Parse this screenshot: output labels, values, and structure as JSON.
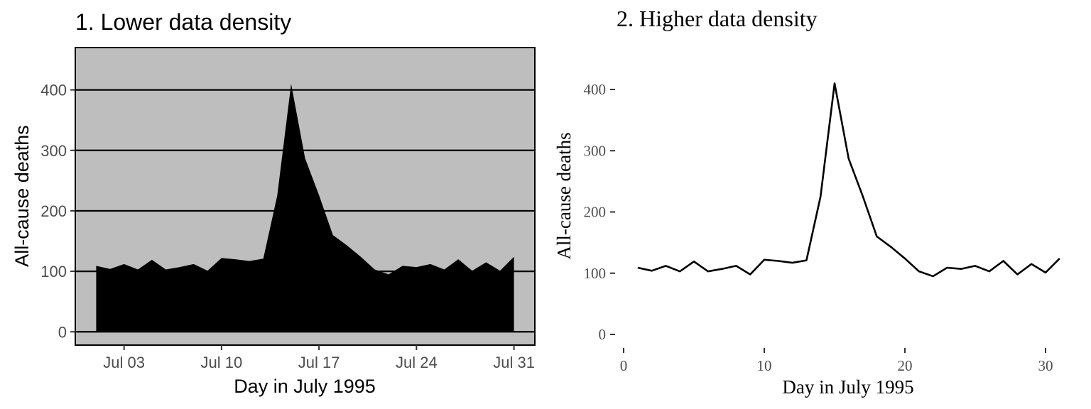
{
  "chart_data": [
    {
      "type": "area",
      "title": "1. Lower data density",
      "xlabel": "Day in July 1995",
      "ylabel": "All-cause deaths",
      "x": [
        1,
        2,
        3,
        4,
        5,
        6,
        7,
        8,
        9,
        10,
        11,
        12,
        13,
        14,
        15,
        16,
        17,
        18,
        19,
        20,
        21,
        22,
        23,
        24,
        25,
        26,
        27,
        28,
        29,
        30,
        31
      ],
      "y": [
        109,
        104,
        112,
        103,
        119,
        103,
        107,
        112,
        101,
        122,
        120,
        117,
        121,
        225,
        410,
        287,
        226,
        160,
        143,
        124,
        103,
        95,
        109,
        107,
        112,
        103,
        120,
        101,
        115,
        101,
        124
      ],
      "x_ticks": [
        3,
        10,
        17,
        24,
        31
      ],
      "x_tick_labels": [
        "Jul 03",
        "Jul 10",
        "Jul 17",
        "Jul 24",
        "Jul 31"
      ],
      "y_ticks": [
        0,
        100,
        200,
        300,
        400
      ],
      "y_tick_labels": [
        "0",
        "100",
        "200",
        "300",
        "400"
      ],
      "xlim": [
        -0.5,
        32.5
      ],
      "ylim": [
        -22,
        470
      ],
      "grid": "major horizontal",
      "colors": {
        "panel": "#bebebe",
        "fill": "#000000",
        "grid": "#000000"
      }
    },
    {
      "type": "line",
      "title": "2. Higher data density",
      "xlabel": "Day in July 1995",
      "ylabel": "All-cause deaths",
      "x": [
        1,
        2,
        3,
        4,
        5,
        6,
        7,
        8,
        9,
        10,
        11,
        12,
        13,
        14,
        15,
        16,
        17,
        18,
        19,
        20,
        21,
        22,
        23,
        24,
        25,
        26,
        27,
        28,
        29,
        30,
        31
      ],
      "y": [
        109,
        104,
        112,
        103,
        119,
        103,
        107,
        112,
        98,
        122,
        120,
        117,
        121,
        225,
        410,
        287,
        226,
        160,
        143,
        124,
        103,
        95,
        109,
        107,
        112,
        103,
        120,
        98,
        115,
        101,
        124
      ],
      "x_ticks": [
        0,
        10,
        20,
        30
      ],
      "x_tick_labels": [
        "0",
        "10",
        "20",
        "30"
      ],
      "y_ticks": [
        0,
        100,
        200,
        300,
        400
      ],
      "y_tick_labels": [
        "0",
        "100",
        "200",
        "300",
        "400"
      ],
      "xlim": [
        0,
        31
      ],
      "ylim": [
        -22,
        470
      ],
      "grid": "none",
      "colors": {
        "line": "#000000"
      }
    }
  ]
}
